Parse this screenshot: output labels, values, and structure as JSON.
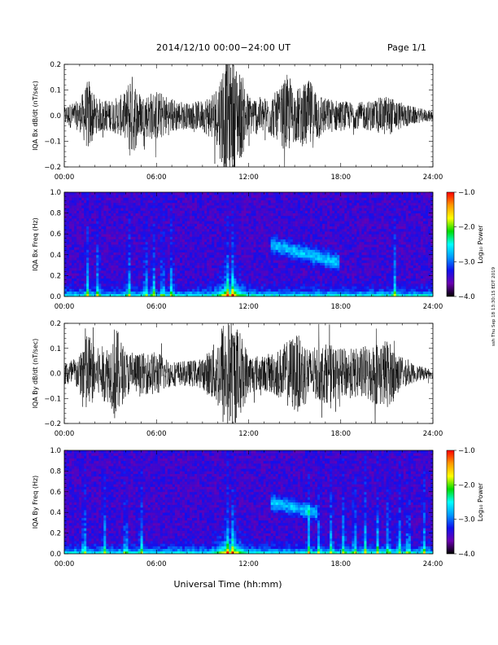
{
  "header": {
    "title": "2014/12/10   00:00−24:00 UT",
    "page": "Page 1/1"
  },
  "side_note": "ssh Thu Sep 18 13:30:15 EDT 2019",
  "colorbar": {
    "ticks": [
      "−1.0",
      "−2.0",
      "−3.0",
      "−4.0"
    ],
    "label": "Log₁₀ Power",
    "colors": [
      "#ff0000",
      "#ff9900",
      "#ffff00",
      "#00dd00",
      "#00ffff",
      "#0099ff",
      "#1010ee",
      "#6a00b0",
      "#000000"
    ]
  },
  "xlabel": "Universal Time (hh:mm)",
  "chart_data": [
    {
      "type": "line",
      "ylabel": "IQA Bx dB/dt (nT/sec)",
      "yticks": [
        "0.2",
        "0.1",
        "0.0",
        "−0.1",
        "−0.2"
      ],
      "ylim": [
        -0.2,
        0.2
      ],
      "xticks": [
        "00:00",
        "06:00",
        "12:00",
        "18:00",
        "24:00"
      ],
      "xlim_hours": [
        0,
        24
      ],
      "envelope": [
        {
          "t": 0,
          "a": 0.04
        },
        {
          "t": 1,
          "a": 0.06
        },
        {
          "t": 1.6,
          "a": 0.15
        },
        {
          "t": 2,
          "a": 0.07
        },
        {
          "t": 3,
          "a": 0.06
        },
        {
          "t": 4,
          "a": 0.09
        },
        {
          "t": 4.3,
          "a": 0.18
        },
        {
          "t": 5,
          "a": 0.08
        },
        {
          "t": 6,
          "a": 0.1
        },
        {
          "t": 7,
          "a": 0.07
        },
        {
          "t": 8,
          "a": 0.05
        },
        {
          "t": 9,
          "a": 0.06
        },
        {
          "t": 10,
          "a": 0.12
        },
        {
          "t": 10.3,
          "a": 0.22
        },
        {
          "t": 11,
          "a": 0.22
        },
        {
          "t": 11.6,
          "a": 0.16
        },
        {
          "t": 12,
          "a": 0.08
        },
        {
          "t": 13,
          "a": 0.07
        },
        {
          "t": 14,
          "a": 0.1
        },
        {
          "t": 14.5,
          "a": 0.16
        },
        {
          "t": 15,
          "a": 0.1
        },
        {
          "t": 16,
          "a": 0.14
        },
        {
          "t": 17,
          "a": 0.07
        },
        {
          "t": 18,
          "a": 0.06
        },
        {
          "t": 19,
          "a": 0.05
        },
        {
          "t": 20,
          "a": 0.06
        },
        {
          "t": 21,
          "a": 0.08
        },
        {
          "t": 22,
          "a": 0.05
        },
        {
          "t": 23,
          "a": 0.03
        },
        {
          "t": 24,
          "a": 0.02
        }
      ]
    },
    {
      "type": "heatmap",
      "ylabel": "IQA Bx Freq (Hz)",
      "yticks": [
        "1.0",
        "0.8",
        "0.6",
        "0.4",
        "0.2",
        "0.0"
      ],
      "ylim": [
        0,
        1
      ],
      "xticks": [
        "00:00",
        "06:00",
        "12:00",
        "18:00",
        "24:00"
      ],
      "zlim": [
        -4.0,
        -1.0
      ],
      "zlabel": "Log₁₀ Power",
      "bursts_hours": [
        1.5,
        2.2,
        4.2,
        5.3,
        5.8,
        6.4,
        7.0,
        10.6,
        11.0,
        21.5
      ],
      "feature": "0.3–0.5 Hz band between 13:30 and 18:00"
    },
    {
      "type": "line",
      "ylabel": "IQA By dB/dt (nT/sec)",
      "yticks": [
        "0.2",
        "0.1",
        "0.0",
        "−0.1",
        "−0.2"
      ],
      "ylim": [
        -0.2,
        0.2
      ],
      "xticks": [
        "00:00",
        "06:00",
        "12:00",
        "18:00",
        "24:00"
      ],
      "xlim_hours": [
        0,
        24
      ],
      "envelope": [
        {
          "t": 0,
          "a": 0.05
        },
        {
          "t": 1,
          "a": 0.07
        },
        {
          "t": 1.3,
          "a": 0.2
        },
        {
          "t": 2,
          "a": 0.1
        },
        {
          "t": 3,
          "a": 0.12
        },
        {
          "t": 3.3,
          "a": 0.2
        },
        {
          "t": 4,
          "a": 0.09
        },
        {
          "t": 5,
          "a": 0.08
        },
        {
          "t": 6,
          "a": 0.09
        },
        {
          "t": 7,
          "a": 0.05
        },
        {
          "t": 8,
          "a": 0.05
        },
        {
          "t": 9,
          "a": 0.06
        },
        {
          "t": 10,
          "a": 0.14
        },
        {
          "t": 10.3,
          "a": 0.22
        },
        {
          "t": 11,
          "a": 0.22
        },
        {
          "t": 11.6,
          "a": 0.15
        },
        {
          "t": 12,
          "a": 0.08
        },
        {
          "t": 13,
          "a": 0.07
        },
        {
          "t": 14,
          "a": 0.1
        },
        {
          "t": 15,
          "a": 0.16
        },
        {
          "t": 15.6,
          "a": 0.14
        },
        {
          "t": 16,
          "a": 0.1
        },
        {
          "t": 17,
          "a": 0.12
        },
        {
          "t": 18,
          "a": 0.1
        },
        {
          "t": 19,
          "a": 0.1
        },
        {
          "t": 20,
          "a": 0.12
        },
        {
          "t": 21,
          "a": 0.14
        },
        {
          "t": 22,
          "a": 0.06
        },
        {
          "t": 23,
          "a": 0.03
        },
        {
          "t": 24,
          "a": 0.02
        }
      ]
    },
    {
      "type": "heatmap",
      "ylabel": "IQA By Freq (Hz)",
      "yticks": [
        "1.0",
        "0.8",
        "0.6",
        "0.4",
        "0.2",
        "0.0"
      ],
      "ylim": [
        0,
        1
      ],
      "xticks": [
        "00:00",
        "06:00",
        "12:00",
        "18:00",
        "24:00"
      ],
      "zlim": [
        -4.0,
        -1.0
      ],
      "zlabel": "Log₁₀ Power",
      "bursts_hours": [
        1.3,
        2.6,
        4.0,
        5.0,
        10.6,
        11.0,
        15.9,
        16.6,
        17.4,
        18.2,
        18.9,
        19.6,
        20.4,
        21.1,
        21.8,
        22.4,
        23.4
      ],
      "feature": "0.3–0.5 Hz band between 13:30 and 16:30"
    }
  ]
}
